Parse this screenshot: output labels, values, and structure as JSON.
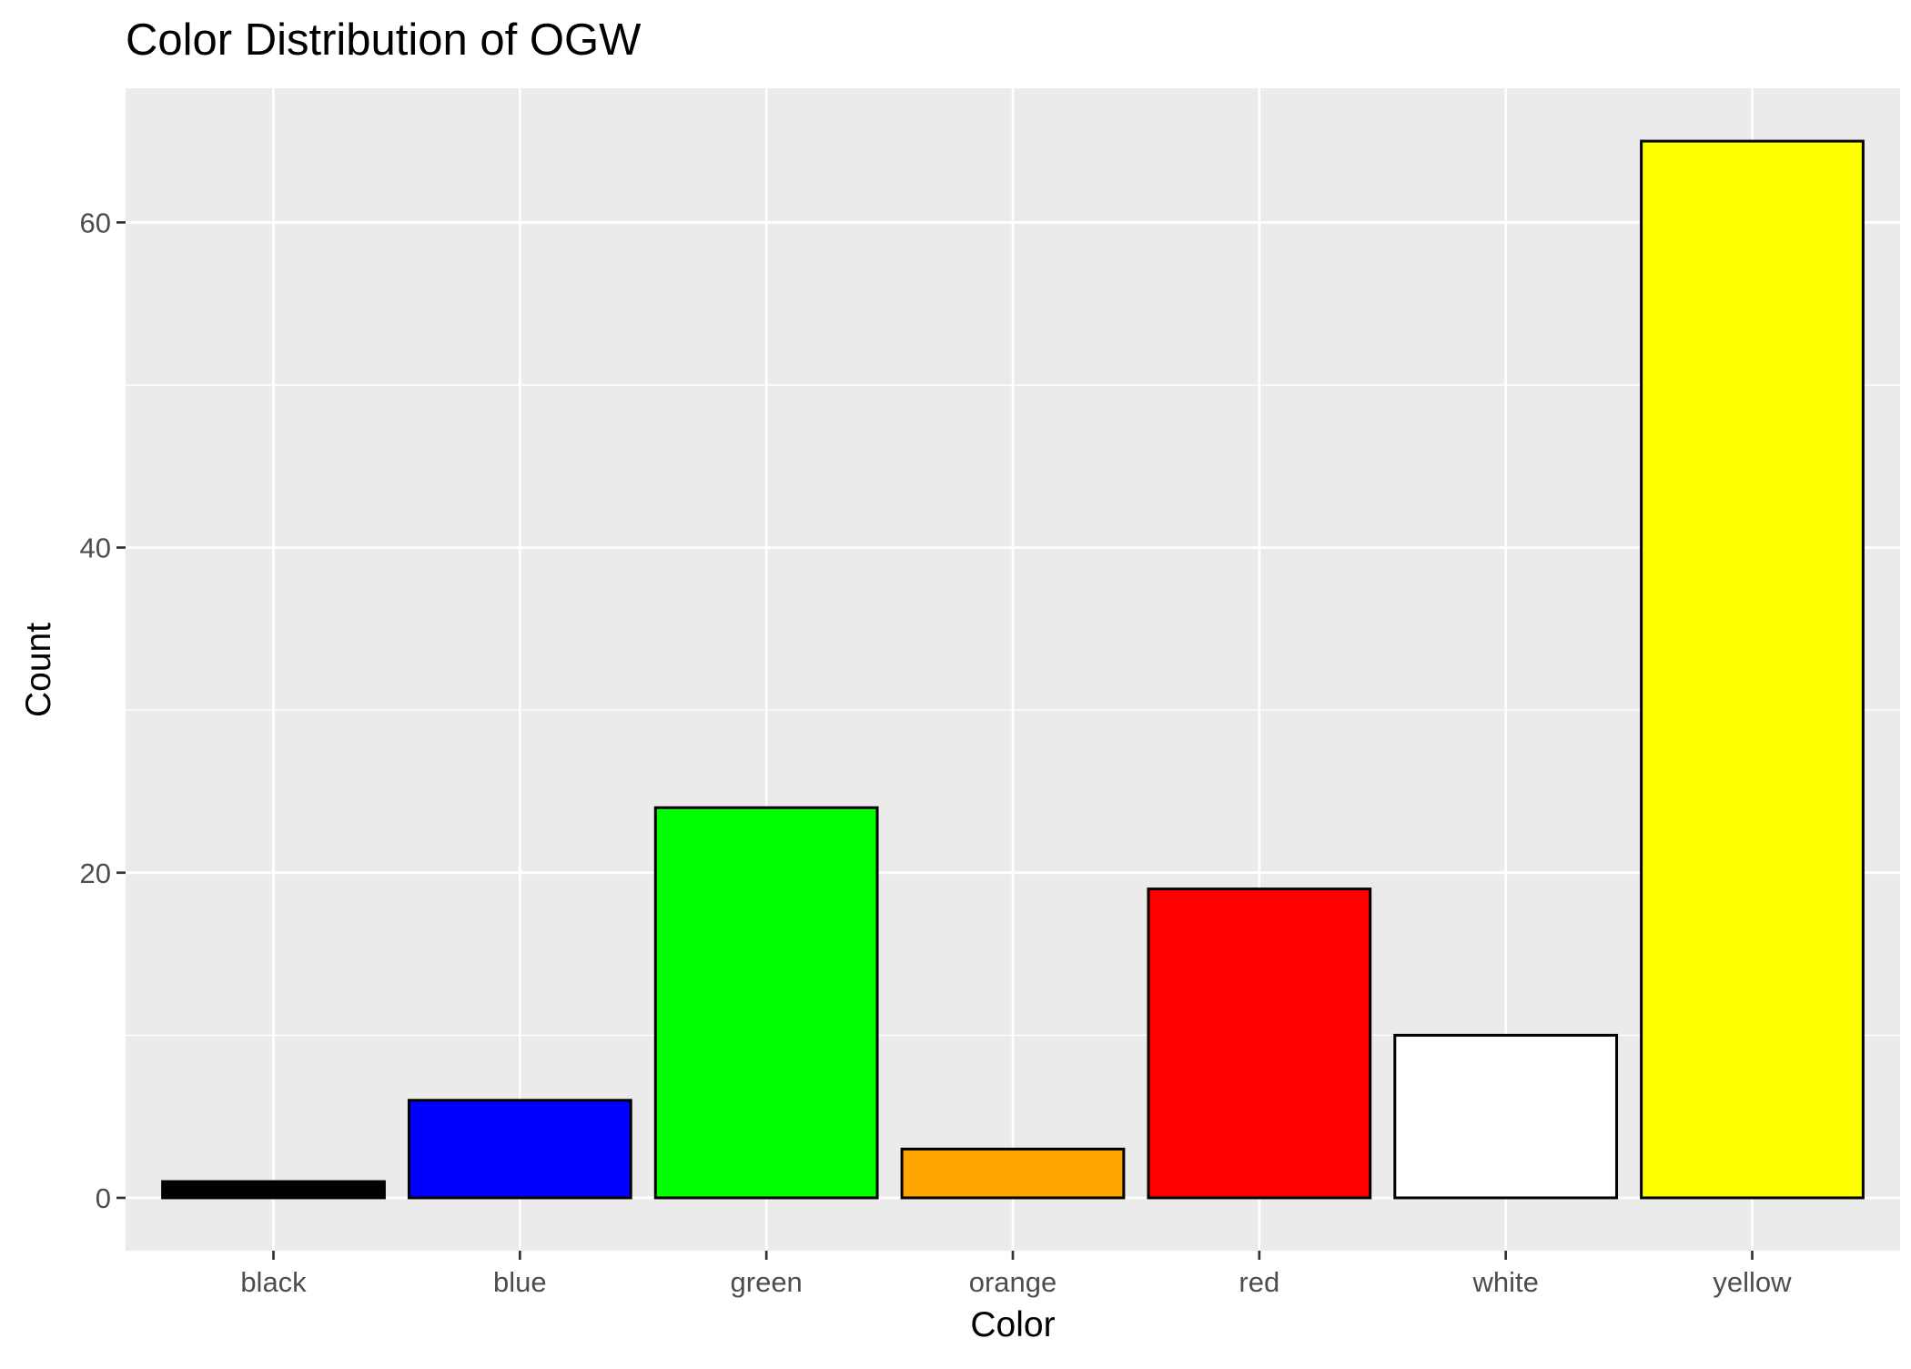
{
  "chart_data": {
    "type": "bar",
    "title": "Color Distribution of OGW",
    "xlabel": "Color",
    "ylabel": "Count",
    "categories": [
      "black",
      "blue",
      "green",
      "orange",
      "red",
      "white",
      "yellow"
    ],
    "values": [
      1,
      6,
      24,
      3,
      19,
      10,
      65
    ],
    "bar_colors": [
      "#000000",
      "#0000ff",
      "#00ff00",
      "#ffa500",
      "#ff0000",
      "#ffffff",
      "#ffff00"
    ],
    "bar_outline_color": "#000000",
    "panel_background": "#ebebeb",
    "grid_color": "#ffffff",
    "ylim": [
      -3.25,
      68.25
    ],
    "y_ticks": [
      0,
      20,
      40,
      60
    ],
    "y_tick_labels": [
      "0",
      "20",
      "40",
      "60"
    ],
    "grid": true,
    "legend": "none"
  }
}
